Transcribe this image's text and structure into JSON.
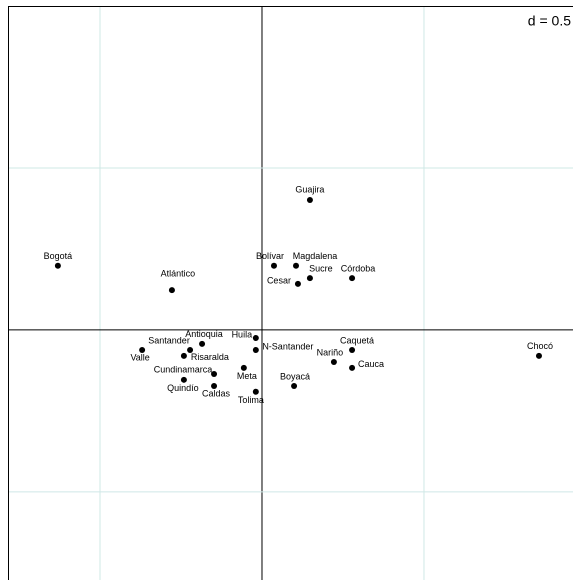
{
  "chart_data": {
    "type": "scatter",
    "annotation": "d = 0.5",
    "labels": [
      "Guajira",
      "Bogotá",
      "Atlántico",
      "Bolívar",
      "Magdalena",
      "Sucre",
      "Córdoba",
      "Cesar",
      "Huila",
      "N-Santander",
      "Antioquia",
      "Santander",
      "Valle",
      "Risaralda",
      "Cundinamarca",
      "Quindío",
      "Caldas",
      "Meta",
      "Tolima",
      "Boyacá",
      "Caquetá",
      "Nariño",
      "Cauca",
      "Chocó"
    ],
    "x": [
      0.148,
      -0.63,
      -0.278,
      0.037,
      0.105,
      0.148,
      0.278,
      0.111,
      -0.019,
      -0.019,
      -0.185,
      -0.222,
      -0.37,
      -0.241,
      -0.148,
      -0.241,
      -0.148,
      -0.056,
      -0.019,
      0.099,
      0.278,
      0.222,
      0.278,
      0.855
    ],
    "y": [
      0.401,
      0.198,
      0.123,
      0.198,
      0.198,
      0.16,
      0.16,
      0.142,
      -0.025,
      -0.062,
      -0.043,
      -0.062,
      -0.062,
      -0.08,
      -0.136,
      -0.154,
      -0.173,
      -0.117,
      -0.191,
      -0.173,
      -0.062,
      -0.099,
      -0.117,
      -0.08
    ],
    "color": "#000000",
    "xlim": [
      -0.784,
      0.96
    ],
    "ylim": [
      -0.772,
      1.0
    ],
    "xticks": [
      -0.5,
      0,
      0.5
    ],
    "yticks": [
      -0.5,
      0,
      0.5
    ],
    "grid": true
  }
}
